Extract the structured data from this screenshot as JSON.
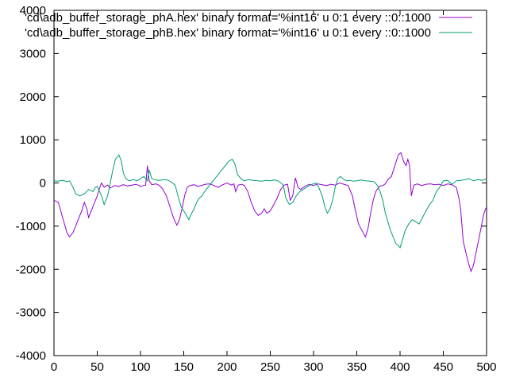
{
  "chart_data": {
    "type": "line",
    "title": "",
    "xlabel": "",
    "ylabel": "",
    "xlim": [
      0,
      500
    ],
    "ylim": [
      -4000,
      4000
    ],
    "x_ticks": [
      0,
      50,
      100,
      150,
      200,
      250,
      300,
      350,
      400,
      450,
      500
    ],
    "y_ticks": [
      -4000,
      -3000,
      -2000,
      -1000,
      0,
      1000,
      2000,
      3000,
      4000
    ],
    "grid": false,
    "legend_position": "top-right",
    "series": [
      {
        "name": "'cd\\adb_buffer_storage_phA.hex' binary format='%int16' u 0:1 every ::0::1000",
        "color": "#9400d3",
        "points": [
          [
            0,
            -400
          ],
          [
            5,
            -450
          ],
          [
            10,
            -800
          ],
          [
            15,
            -1150
          ],
          [
            18,
            -1250
          ],
          [
            22,
            -1150
          ],
          [
            25,
            -1000
          ],
          [
            28,
            -850
          ],
          [
            32,
            -650
          ],
          [
            35,
            -450
          ],
          [
            38,
            -600
          ],
          [
            40,
            -800
          ],
          [
            42,
            -700
          ],
          [
            45,
            -550
          ],
          [
            48,
            -400
          ],
          [
            50,
            -300
          ],
          [
            53,
            -100
          ],
          [
            55,
            0
          ],
          [
            58,
            -100
          ],
          [
            62,
            -50
          ],
          [
            65,
            -120
          ],
          [
            70,
            -60
          ],
          [
            75,
            -80
          ],
          [
            80,
            -40
          ],
          [
            85,
            -70
          ],
          [
            90,
            -50
          ],
          [
            95,
            -30
          ],
          [
            100,
            -80
          ],
          [
            103,
            -60
          ],
          [
            106,
            -50
          ],
          [
            108,
            400
          ],
          [
            110,
            50
          ],
          [
            113,
            -40
          ],
          [
            118,
            -20
          ],
          [
            122,
            -60
          ],
          [
            126,
            -150
          ],
          [
            130,
            -300
          ],
          [
            134,
            -550
          ],
          [
            138,
            -800
          ],
          [
            142,
            -980
          ],
          [
            145,
            -850
          ],
          [
            148,
            -600
          ],
          [
            151,
            -300
          ],
          [
            154,
            -100
          ],
          [
            157,
            -60
          ],
          [
            162,
            -40
          ],
          [
            166,
            -80
          ],
          [
            170,
            -60
          ],
          [
            175,
            -30
          ],
          [
            180,
            -20
          ],
          [
            185,
            -60
          ],
          [
            190,
            -100
          ],
          [
            195,
            -40
          ],
          [
            200,
            0
          ],
          [
            205,
            -50
          ],
          [
            208,
            -20
          ],
          [
            210,
            -200
          ],
          [
            213,
            -50
          ],
          [
            217,
            -30
          ],
          [
            220,
            -60
          ],
          [
            224,
            -200
          ],
          [
            228,
            -450
          ],
          [
            232,
            -650
          ],
          [
            236,
            -750
          ],
          [
            240,
            -700
          ],
          [
            243,
            -600
          ],
          [
            246,
            -700
          ],
          [
            250,
            -650
          ],
          [
            254,
            -500
          ],
          [
            258,
            -350
          ],
          [
            262,
            -150
          ],
          [
            266,
            -50
          ],
          [
            270,
            -30
          ],
          [
            273,
            -400
          ],
          [
            276,
            -300
          ],
          [
            279,
            120
          ],
          [
            282,
            -100
          ],
          [
            285,
            -150
          ],
          [
            290,
            -80
          ],
          [
            295,
            -30
          ],
          [
            300,
            -60
          ],
          [
            305,
            -20
          ],
          [
            310,
            -40
          ],
          [
            315,
            -60
          ],
          [
            320,
            -30
          ],
          [
            325,
            -50
          ],
          [
            330,
            0
          ],
          [
            335,
            -30
          ],
          [
            340,
            -60
          ],
          [
            345,
            -300
          ],
          [
            348,
            -600
          ],
          [
            352,
            -950
          ],
          [
            356,
            -1100
          ],
          [
            360,
            -1250
          ],
          [
            363,
            -1050
          ],
          [
            366,
            -700
          ],
          [
            369,
            -400
          ],
          [
            372,
            -200
          ],
          [
            376,
            -80
          ],
          [
            380,
            -60
          ],
          [
            383,
            -20
          ],
          [
            386,
            80
          ],
          [
            390,
            150
          ],
          [
            394,
            400
          ],
          [
            398,
            650
          ],
          [
            401,
            700
          ],
          [
            404,
            500
          ],
          [
            407,
            400
          ],
          [
            409,
            550
          ],
          [
            411,
            400
          ],
          [
            413,
            -300
          ],
          [
            416,
            -50
          ],
          [
            420,
            -20
          ],
          [
            425,
            -60
          ],
          [
            430,
            -30
          ],
          [
            435,
            -20
          ],
          [
            440,
            -40
          ],
          [
            445,
            -30
          ],
          [
            450,
            -60
          ],
          [
            455,
            -20
          ],
          [
            460,
            -40
          ],
          [
            465,
            -100
          ],
          [
            468,
            -350
          ],
          [
            470,
            -600
          ],
          [
            473,
            -1350
          ],
          [
            476,
            -1600
          ],
          [
            479,
            -1850
          ],
          [
            482,
            -2050
          ],
          [
            485,
            -1900
          ],
          [
            488,
            -1600
          ],
          [
            491,
            -1300
          ],
          [
            494,
            -1000
          ],
          [
            497,
            -700
          ],
          [
            500,
            -550
          ]
        ]
      },
      {
        "name": "'cd\\adb_buffer_storage_phB.hex' binary format='%int16' u 0:1 every ::0::1000",
        "color": "#009e73",
        "points": [
          [
            0,
            50
          ],
          [
            5,
            40
          ],
          [
            10,
            60
          ],
          [
            15,
            30
          ],
          [
            18,
            50
          ],
          [
            22,
            -100
          ],
          [
            25,
            -250
          ],
          [
            30,
            -300
          ],
          [
            35,
            -250
          ],
          [
            40,
            -150
          ],
          [
            45,
            -200
          ],
          [
            48,
            -100
          ],
          [
            50,
            -80
          ],
          [
            55,
            -300
          ],
          [
            58,
            -500
          ],
          [
            62,
            -300
          ],
          [
            65,
            0
          ],
          [
            68,
            300
          ],
          [
            71,
            550
          ],
          [
            75,
            650
          ],
          [
            78,
            500
          ],
          [
            80,
            250
          ],
          [
            83,
            100
          ],
          [
            87,
            50
          ],
          [
            92,
            80
          ],
          [
            96,
            50
          ],
          [
            100,
            100
          ],
          [
            104,
            150
          ],
          [
            108,
            50
          ],
          [
            110,
            300
          ],
          [
            113,
            100
          ],
          [
            116,
            80
          ],
          [
            120,
            60
          ],
          [
            125,
            70
          ],
          [
            130,
            80
          ],
          [
            135,
            30
          ],
          [
            140,
            -50
          ],
          [
            144,
            -350
          ],
          [
            147,
            -550
          ],
          [
            150,
            -650
          ],
          [
            153,
            -750
          ],
          [
            156,
            -850
          ],
          [
            159,
            -700
          ],
          [
            162,
            -600
          ],
          [
            165,
            -450
          ],
          [
            168,
            -350
          ],
          [
            171,
            -300
          ],
          [
            174,
            -200
          ],
          [
            178,
            -100
          ],
          [
            182,
            0
          ],
          [
            186,
            100
          ],
          [
            190,
            200
          ],
          [
            194,
            300
          ],
          [
            198,
            400
          ],
          [
            202,
            500
          ],
          [
            206,
            550
          ],
          [
            209,
            450
          ],
          [
            212,
            200
          ],
          [
            216,
            100
          ],
          [
            220,
            50
          ],
          [
            225,
            80
          ],
          [
            230,
            60
          ],
          [
            235,
            50
          ],
          [
            240,
            40
          ],
          [
            245,
            60
          ],
          [
            250,
            50
          ],
          [
            255,
            70
          ],
          [
            260,
            40
          ],
          [
            265,
            -50
          ],
          [
            268,
            -350
          ],
          [
            272,
            -500
          ],
          [
            276,
            -450
          ],
          [
            280,
            -300
          ],
          [
            284,
            -200
          ],
          [
            288,
            -150
          ],
          [
            292,
            -100
          ],
          [
            296,
            -50
          ],
          [
            300,
            -20
          ],
          [
            303,
            0
          ],
          [
            306,
            -100
          ],
          [
            310,
            -300
          ],
          [
            313,
            -550
          ],
          [
            316,
            -700
          ],
          [
            319,
            -600
          ],
          [
            322,
            -400
          ],
          [
            325,
            -100
          ],
          [
            328,
            100
          ],
          [
            331,
            150
          ],
          [
            334,
            100
          ],
          [
            338,
            50
          ],
          [
            342,
            60
          ],
          [
            346,
            40
          ],
          [
            350,
            50
          ],
          [
            355,
            70
          ],
          [
            360,
            50
          ],
          [
            365,
            40
          ],
          [
            370,
            30
          ],
          [
            374,
            -60
          ],
          [
            377,
            -200
          ],
          [
            380,
            -400
          ],
          [
            383,
            -700
          ],
          [
            386,
            -900
          ],
          [
            389,
            -1100
          ],
          [
            392,
            -1250
          ],
          [
            395,
            -1400
          ],
          [
            398,
            -1450
          ],
          [
            400,
            -1500
          ],
          [
            403,
            -1300
          ],
          [
            406,
            -1100
          ],
          [
            410,
            -950
          ],
          [
            414,
            -850
          ],
          [
            418,
            -900
          ],
          [
            422,
            -950
          ],
          [
            426,
            -800
          ],
          [
            430,
            -650
          ],
          [
            434,
            -500
          ],
          [
            438,
            -400
          ],
          [
            442,
            -200
          ],
          [
            446,
            -100
          ],
          [
            450,
            50
          ],
          [
            455,
            60
          ],
          [
            460,
            -30
          ],
          [
            465,
            50
          ],
          [
            470,
            60
          ],
          [
            475,
            80
          ],
          [
            480,
            100
          ],
          [
            485,
            50
          ],
          [
            490,
            80
          ],
          [
            495,
            60
          ],
          [
            500,
            100
          ]
        ]
      }
    ]
  }
}
